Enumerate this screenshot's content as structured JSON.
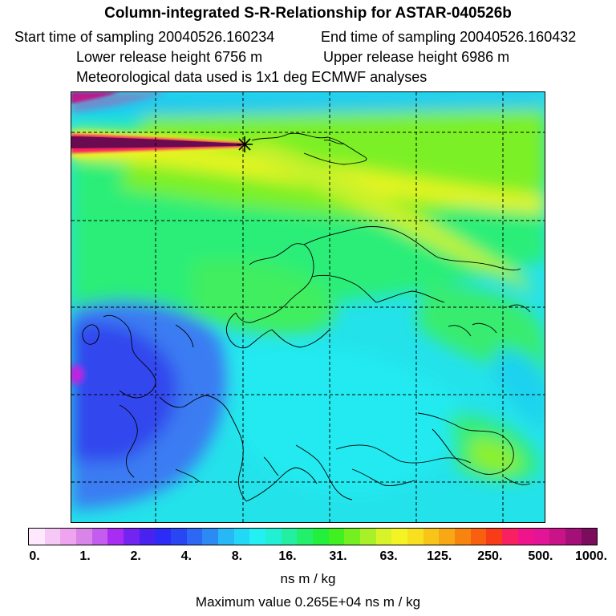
{
  "header": {
    "title": "Column-integrated S-R-Relationship for ASTAR-040526b",
    "start_time": "Start time of sampling 20040526.160234",
    "end_time": "End time of sampling 20040526.160432",
    "lower_height": "Lower release height 6756 m",
    "upper_height": "Upper release height 6986 m",
    "met_data": "Meteorological data used is 1x1 deg ECMWF analyses"
  },
  "colorbar": {
    "tick_labels": [
      "0.",
      "1.",
      "2.",
      "4.",
      "8.",
      "16.",
      "31.",
      "63.",
      "125.",
      "250.",
      "500.",
      "1000."
    ],
    "colors": [
      "#fde8fd",
      "#f6c8f6",
      "#eea4ee",
      "#d884e8",
      "#c45cf0",
      "#a82cf2",
      "#7424f0",
      "#4a22f0",
      "#2c2cf6",
      "#2846f2",
      "#2c68f4",
      "#2c8af4",
      "#28b8f6",
      "#22d8f6",
      "#22f0f2",
      "#22f0d4",
      "#22f0a0",
      "#22f06c",
      "#22f03c",
      "#40f020",
      "#74f020",
      "#a8f028",
      "#d8f428",
      "#f4f424",
      "#f8e020",
      "#f8c418",
      "#f8a814",
      "#f88410",
      "#f86010",
      "#f83c18",
      "#f82060",
      "#f0148c",
      "#e21498",
      "#c81488",
      "#a41078",
      "#7c0c5c"
    ],
    "unit": "ns m / kg"
  },
  "footer": {
    "max_value": "Maximum value  0.265E+04 ns m / kg"
  },
  "map": {
    "background": "#22e6e6",
    "release_marker_icon": "black-star-icon",
    "plume_colors": [
      "#7c0c5c",
      "#f82060",
      "#f8f020"
    ],
    "grid_lines": "dashed"
  }
}
